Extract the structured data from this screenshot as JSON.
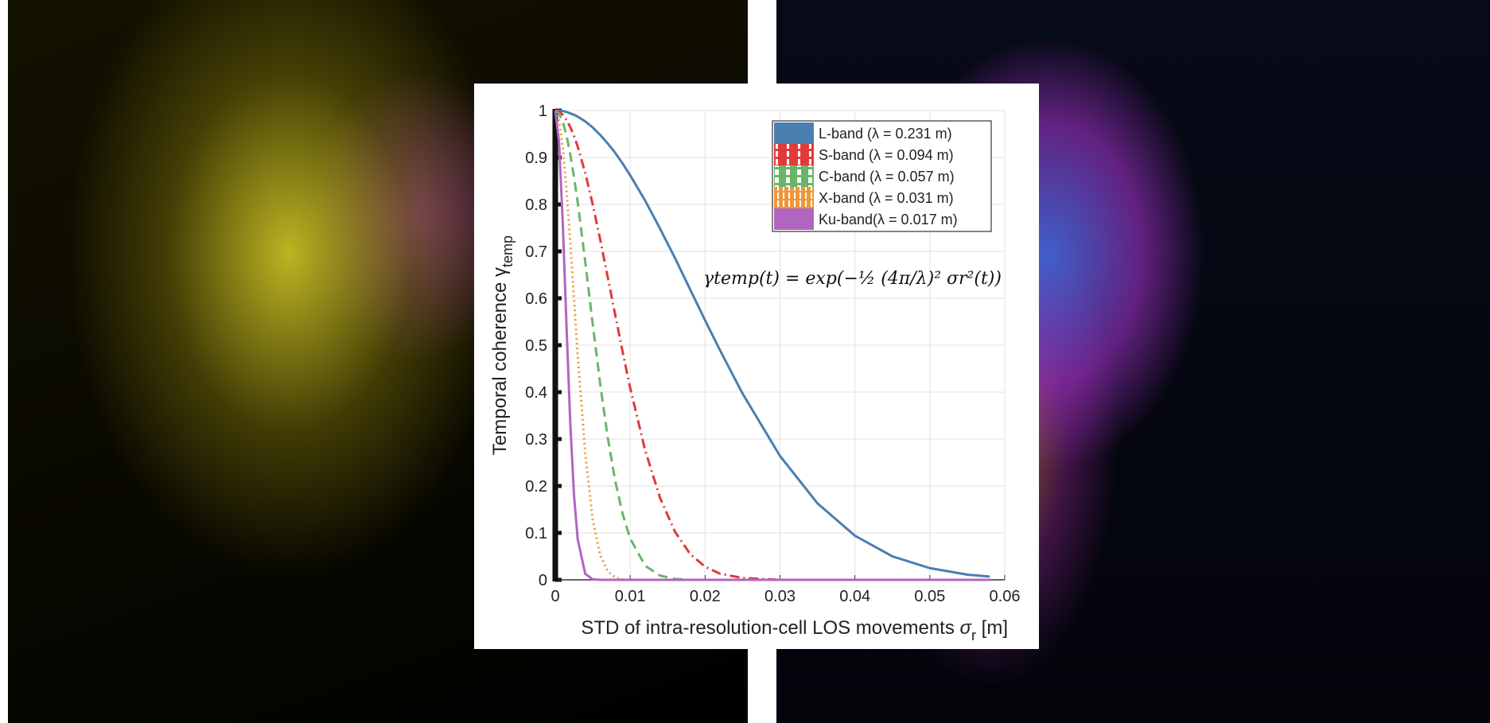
{
  "chart_data": {
    "type": "line",
    "x_label": {
      "text": "STD of intra-resolution-cell LOS movements",
      "symbol": "σ",
      "subscript": "r",
      "unit": "[m]"
    },
    "y_label": {
      "text": "Temporal coherence γ",
      "subscript": "temp"
    },
    "annotation": "γtemp(t) = exp(−½ (4π/λ)² σr²(t))",
    "x": [
      0,
      0.0005,
      0.001,
      0.0015,
      0.002,
      0.0025,
      0.003,
      0.004,
      0.005,
      0.006,
      0.007,
      0.008,
      0.009,
      0.01,
      0.012,
      0.014,
      0.016,
      0.018,
      0.02,
      0.022,
      0.025,
      0.03,
      0.035,
      0.04,
      0.045,
      0.05,
      0.055,
      0.058
    ],
    "series": [
      {
        "name": "L-band (λ = 0.231 m)",
        "color": "#4a7fb0",
        "linestyle": "solid",
        "values": [
          1,
          1.0,
          0.999,
          0.997,
          0.994,
          0.991,
          0.987,
          0.977,
          0.964,
          0.948,
          0.93,
          0.91,
          0.887,
          0.862,
          0.808,
          0.748,
          0.685,
          0.619,
          0.553,
          0.489,
          0.397,
          0.264,
          0.163,
          0.094,
          0.05,
          0.025,
          0.011,
          0.007
        ]
      },
      {
        "name": "S-band (λ = 0.094 m)",
        "color": "#e03a3a",
        "linestyle": "dashdot",
        "values": [
          1,
          0.998,
          0.991,
          0.98,
          0.965,
          0.946,
          0.923,
          0.867,
          0.8,
          0.725,
          0.645,
          0.565,
          0.485,
          0.409,
          0.276,
          0.174,
          0.102,
          0.055,
          0.028,
          0.013,
          0.004,
          0,
          0,
          0,
          0,
          0,
          0,
          0
        ]
      },
      {
        "name": "C-band (λ = 0.057 m)",
        "color": "#6ab56a",
        "linestyle": "dashed",
        "values": [
          1,
          0.994,
          0.976,
          0.947,
          0.907,
          0.859,
          0.804,
          0.678,
          0.545,
          0.417,
          0.304,
          0.211,
          0.14,
          0.088,
          0.03,
          0.009,
          0.002,
          0,
          0,
          0,
          0,
          0,
          0,
          0,
          0,
          0,
          0,
          0
        ]
      },
      {
        "name": "X-band (λ = 0.031 m)",
        "color": "#f0963a",
        "linestyle": "dotted",
        "values": [
          1,
          0.98,
          0.921,
          0.831,
          0.72,
          0.598,
          0.477,
          0.269,
          0.128,
          0.052,
          0.018,
          0.005,
          0.001,
          0,
          0,
          0,
          0,
          0,
          0,
          0,
          0,
          0,
          0,
          0,
          0,
          0,
          0,
          0
        ]
      },
      {
        "name": "Ku-band(λ = 0.017 m)",
        "color": "#b066c0",
        "linestyle": "solid",
        "values": [
          1,
          0.934,
          0.761,
          0.541,
          0.335,
          0.181,
          0.086,
          0.013,
          0.001,
          0,
          0,
          0,
          0,
          0,
          0,
          0,
          0,
          0,
          0,
          0,
          0,
          0,
          0,
          0,
          0,
          0,
          0,
          0
        ]
      }
    ],
    "xlim": [
      0,
      0.06
    ],
    "xticks": [
      0,
      0.01,
      0.02,
      0.03,
      0.04,
      0.05,
      0.06
    ],
    "ylim": [
      0,
      1
    ],
    "yticks": [
      0,
      0.1,
      0.2,
      0.3,
      0.4,
      0.5,
      0.6,
      0.7,
      0.8,
      0.9,
      1
    ],
    "grid": true,
    "legend": "upper right"
  }
}
